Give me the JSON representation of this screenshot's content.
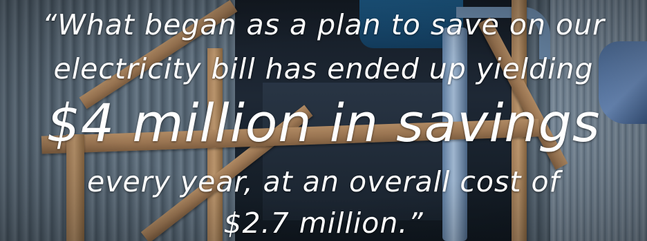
{
  "quote": {
    "line1": "“What began as a plan to save on our",
    "line2": "electricity bill has ended up yielding",
    "line3": "$4 million in savings",
    "line4": "every year, at an overall cost of",
    "line5": "$2.7 million.”"
  },
  "colors": {
    "text": "#ffffff",
    "wood": "#a98460",
    "pipe": "#7f9bbb",
    "wall": "#5a6a78"
  }
}
